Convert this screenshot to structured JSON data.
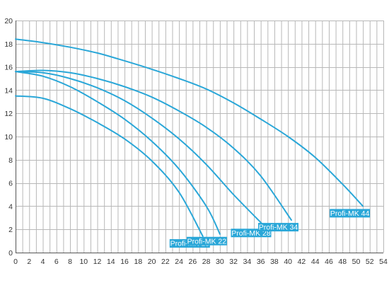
{
  "chart_data": {
    "type": "line",
    "xlabel": "",
    "ylabel": "",
    "xlim": [
      0,
      54
    ],
    "ylim": [
      0,
      20
    ],
    "x_ticks": [
      0,
      2,
      4,
      6,
      8,
      10,
      12,
      14,
      16,
      18,
      20,
      22,
      24,
      26,
      28,
      30,
      32,
      34,
      36,
      38,
      40,
      42,
      44,
      46,
      48,
      50,
      52,
      54
    ],
    "y_ticks": [
      0,
      2,
      4,
      6,
      8,
      10,
      12,
      14,
      16,
      18,
      20
    ],
    "grid": true,
    "line_color": "#2aa7d8",
    "series": [
      {
        "name": "Profi-MK 18",
        "points": [
          [
            0,
            13.5
          ],
          [
            4,
            13.3
          ],
          [
            8,
            12.4
          ],
          [
            12,
            11.2
          ],
          [
            16,
            9.8
          ],
          [
            20,
            7.9
          ],
          [
            24,
            5.2
          ],
          [
            27.5,
            1.4
          ]
        ]
      },
      {
        "name": "Profi-MK 22",
        "points": [
          [
            0,
            15.6
          ],
          [
            4,
            15.2
          ],
          [
            8,
            14.3
          ],
          [
            12,
            13
          ],
          [
            16,
            11.5
          ],
          [
            20,
            9.6
          ],
          [
            24,
            7.2
          ],
          [
            28,
            4
          ],
          [
            30,
            1.6
          ]
        ]
      },
      {
        "name": "Profi-MK 28",
        "points": [
          [
            0,
            15.6
          ],
          [
            4,
            15.5
          ],
          [
            8,
            15
          ],
          [
            12,
            14.2
          ],
          [
            16,
            13.1
          ],
          [
            20,
            11.6
          ],
          [
            24,
            9.8
          ],
          [
            28,
            7.6
          ],
          [
            32,
            5
          ],
          [
            36.5,
            2.3
          ]
        ]
      },
      {
        "name": "Profi-MK 34",
        "points": [
          [
            0,
            15.6
          ],
          [
            4,
            15.7
          ],
          [
            8,
            15.5
          ],
          [
            12,
            15
          ],
          [
            16,
            14.3
          ],
          [
            20,
            13.4
          ],
          [
            24,
            12.2
          ],
          [
            28,
            10.8
          ],
          [
            32,
            9
          ],
          [
            36,
            6.6
          ],
          [
            40.5,
            2.8
          ]
        ]
      },
      {
        "name": "Profi-MK 44",
        "points": [
          [
            0,
            18.4
          ],
          [
            4,
            18.1
          ],
          [
            8,
            17.7
          ],
          [
            12,
            17.2
          ],
          [
            15,
            16.7
          ],
          [
            20,
            15.8
          ],
          [
            24,
            15
          ],
          [
            28,
            14.1
          ],
          [
            32,
            12.9
          ],
          [
            36,
            11.5
          ],
          [
            40,
            10
          ],
          [
            44,
            8.2
          ],
          [
            48,
            5.9
          ],
          [
            51,
            4
          ]
        ]
      }
    ],
    "curve_labels": [
      {
        "text": "Profi-MK 18",
        "anchor": [
          27.5,
          1.4
        ]
      },
      {
        "text": "Profi-MK 22",
        "anchor": [
          30,
          1.6
        ]
      },
      {
        "text": "Profi-MK 28",
        "anchor": [
          36.5,
          2.3
        ]
      },
      {
        "text": "Profi-MK 34",
        "anchor": [
          40.5,
          2.8
        ]
      },
      {
        "text": "Profi-MK 44",
        "anchor": [
          51,
          4
        ]
      }
    ]
  }
}
